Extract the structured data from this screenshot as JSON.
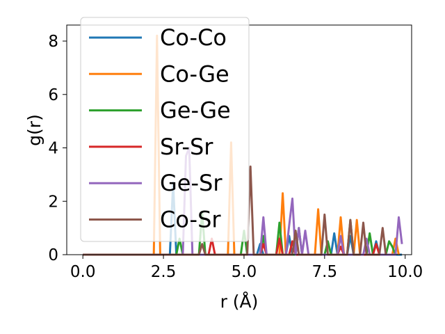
{
  "chart_data": {
    "type": "line",
    "xlabel": "r (Å)",
    "ylabel": "g(r)",
    "xlim": [
      -0.5,
      10.2
    ],
    "ylim": [
      0,
      8.6
    ],
    "x_ticks": [
      0.0,
      2.5,
      5.0,
      7.5,
      10.0
    ],
    "x_tick_labels": [
      "0.0",
      "2.5",
      "5.0",
      "7.5",
      "10.0"
    ],
    "y_ticks": [
      0,
      2,
      4,
      6,
      8
    ],
    "y_tick_labels": [
      "0",
      "2",
      "4",
      "6",
      "8"
    ],
    "grid": false,
    "legend_position": "upper-left",
    "series": [
      {
        "name": "Co-Co",
        "color": "#1f77b4",
        "points": [
          [
            0,
            0
          ],
          [
            2.7,
            0
          ],
          [
            2.8,
            2.7
          ],
          [
            2.9,
            0
          ],
          [
            5.4,
            0
          ],
          [
            5.5,
            0.4
          ],
          [
            5.6,
            0
          ],
          [
            6.3,
            0
          ],
          [
            6.4,
            0.7
          ],
          [
            6.5,
            0
          ],
          [
            7.7,
            0
          ],
          [
            7.8,
            0.8
          ],
          [
            7.9,
            0
          ],
          [
            8.2,
            0
          ],
          [
            8.3,
            0.7
          ],
          [
            8.4,
            0
          ],
          [
            9.0,
            0
          ],
          [
            9.1,
            0.5
          ],
          [
            9.2,
            0
          ],
          [
            9.9,
            0
          ]
        ]
      },
      {
        "name": "Co-Ge",
        "color": "#ff7f0e",
        "points": [
          [
            0,
            0
          ],
          [
            2.2,
            0
          ],
          [
            2.3,
            8.2
          ],
          [
            2.4,
            0
          ],
          [
            4.5,
            0
          ],
          [
            4.6,
            4.2
          ],
          [
            4.7,
            0
          ],
          [
            6.1,
            0
          ],
          [
            6.2,
            2.3
          ],
          [
            6.3,
            0
          ],
          [
            7.2,
            0
          ],
          [
            7.3,
            1.7
          ],
          [
            7.4,
            0
          ],
          [
            7.9,
            0
          ],
          [
            8.0,
            1.4
          ],
          [
            8.1,
            0
          ],
          [
            8.4,
            0
          ],
          [
            8.5,
            1.3
          ],
          [
            8.6,
            0
          ],
          [
            9.6,
            0
          ],
          [
            9.7,
            0.6
          ],
          [
            9.8,
            0
          ]
        ]
      },
      {
        "name": "Ge-Ge",
        "color": "#2ca02c",
        "points": [
          [
            0,
            0
          ],
          [
            2.9,
            0
          ],
          [
            3.0,
            0.6
          ],
          [
            3.1,
            0
          ],
          [
            3.6,
            0
          ],
          [
            3.7,
            1.6
          ],
          [
            3.8,
            0
          ],
          [
            4.9,
            0
          ],
          [
            5.0,
            0.9
          ],
          [
            5.1,
            0
          ],
          [
            5.5,
            0
          ],
          [
            5.6,
            0.7
          ],
          [
            5.7,
            0
          ],
          [
            6.0,
            0
          ],
          [
            6.1,
            1.2
          ],
          [
            6.2,
            0
          ],
          [
            6.6,
            0
          ],
          [
            6.7,
            1.0
          ],
          [
            6.8,
            0
          ],
          [
            7.5,
            0
          ],
          [
            7.6,
            0.5
          ],
          [
            7.7,
            0
          ],
          [
            8.2,
            0
          ],
          [
            8.3,
            1.3
          ],
          [
            8.4,
            0
          ],
          [
            8.8,
            0
          ],
          [
            8.9,
            0.8
          ],
          [
            9.0,
            0
          ],
          [
            9.4,
            0
          ],
          [
            9.5,
            0.5
          ],
          [
            9.6,
            0.3
          ],
          [
            9.7,
            0
          ]
        ]
      },
      {
        "name": "Sr-Sr",
        "color": "#d62728",
        "points": [
          [
            0,
            0
          ],
          [
            3.9,
            0
          ],
          [
            4.0,
            0.6
          ],
          [
            4.1,
            0
          ],
          [
            5.5,
            0
          ],
          [
            5.6,
            0.4
          ],
          [
            5.7,
            0
          ],
          [
            6.0,
            0
          ],
          [
            6.1,
            0.6
          ],
          [
            6.2,
            0
          ],
          [
            6.4,
            0
          ],
          [
            6.5,
            0.5
          ],
          [
            6.6,
            0
          ],
          [
            7.9,
            0
          ],
          [
            8.0,
            0.3
          ],
          [
            8.1,
            0
          ],
          [
            9.0,
            0
          ],
          [
            9.1,
            0.4
          ],
          [
            9.2,
            0
          ]
        ]
      },
      {
        "name": "Ge-Sr",
        "color": "#9467bd",
        "points": [
          [
            0,
            0
          ],
          [
            3.1,
            0
          ],
          [
            3.2,
            3.7
          ],
          [
            3.3,
            4.0
          ],
          [
            3.4,
            0
          ],
          [
            5.5,
            0
          ],
          [
            5.6,
            1.4
          ],
          [
            5.7,
            0
          ],
          [
            6.3,
            0
          ],
          [
            6.4,
            1.1
          ],
          [
            6.5,
            2.1
          ],
          [
            6.6,
            0
          ],
          [
            6.7,
            1.0
          ],
          [
            6.8,
            0
          ],
          [
            6.9,
            0.9
          ],
          [
            7.0,
            0
          ],
          [
            7.9,
            0
          ],
          [
            8.0,
            0.7
          ],
          [
            8.1,
            0
          ],
          [
            8.7,
            0
          ],
          [
            8.8,
            0.6
          ],
          [
            8.9,
            0
          ],
          [
            9.7,
            0
          ],
          [
            9.8,
            1.4
          ],
          [
            9.9,
            0.4
          ]
        ]
      },
      {
        "name": "Co-Sr",
        "color": "#8c564b",
        "points": [
          [
            0,
            0
          ],
          [
            3.6,
            0
          ],
          [
            3.7,
            0.4
          ],
          [
            3.8,
            0
          ],
          [
            5.1,
            0
          ],
          [
            5.2,
            3.3
          ],
          [
            5.3,
            0
          ],
          [
            6.5,
            0
          ],
          [
            6.6,
            0.9
          ],
          [
            6.7,
            0
          ],
          [
            7.4,
            0
          ],
          [
            7.5,
            1.5
          ],
          [
            7.6,
            0
          ],
          [
            8.2,
            0
          ],
          [
            8.3,
            1.3
          ],
          [
            8.4,
            0
          ],
          [
            8.6,
            0
          ],
          [
            8.7,
            1.2
          ],
          [
            8.8,
            0
          ],
          [
            9.2,
            0
          ],
          [
            9.3,
            1.0
          ],
          [
            9.4,
            0
          ]
        ]
      }
    ]
  }
}
